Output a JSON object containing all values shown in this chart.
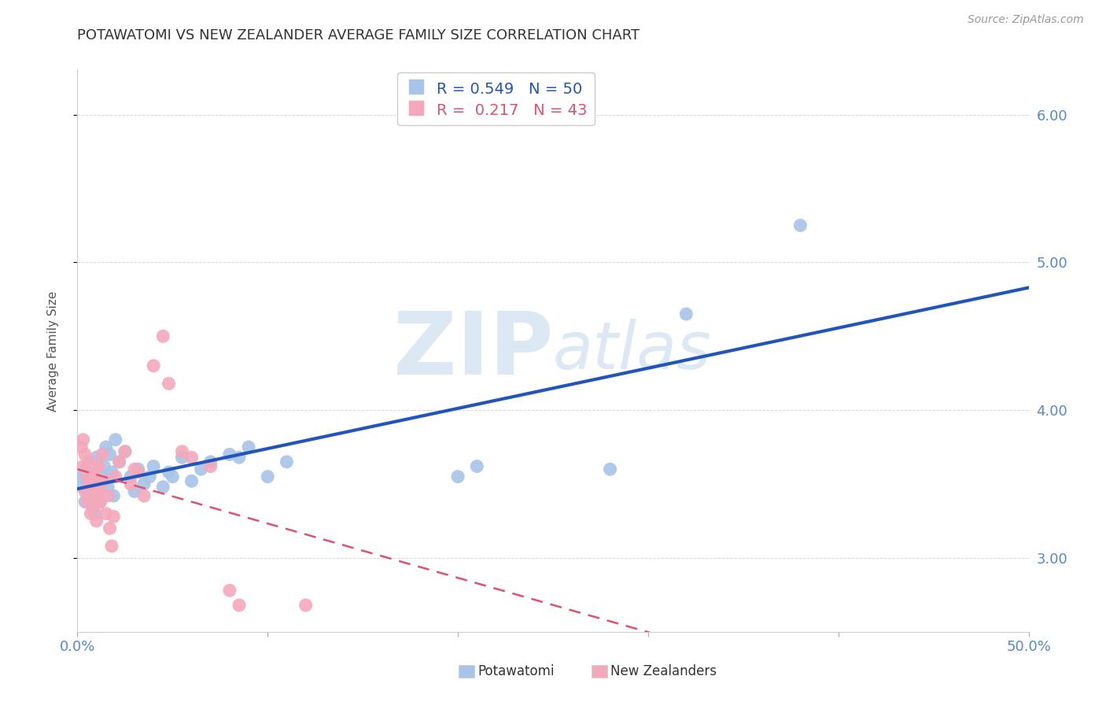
{
  "title": "POTAWATOMI VS NEW ZEALANDER AVERAGE FAMILY SIZE CORRELATION CHART",
  "source": "Source: ZipAtlas.com",
  "ylabel": "Average Family Size",
  "xlim": [
    0.0,
    0.5
  ],
  "ylim": [
    2.5,
    6.3
  ],
  "yticks": [
    3.0,
    4.0,
    5.0,
    6.0
  ],
  "xticks": [
    0.0,
    0.1,
    0.2,
    0.3,
    0.4,
    0.5
  ],
  "xticklabels": [
    "0.0%",
    "",
    "",
    "",
    "",
    "50.0%"
  ],
  "yticklabels": [
    "3.00",
    "4.00",
    "5.00",
    "6.00"
  ],
  "blue_R": 0.549,
  "blue_N": 50,
  "pink_R": 0.217,
  "pink_N": 43,
  "blue_color": "#a8c4e8",
  "pink_color": "#f4a8bc",
  "blue_line_color": "#2255bb",
  "pink_line_color": "#e05070",
  "legend_label_blue": "Potawatomi",
  "legend_label_pink": "New Zealanders",
  "blue_dots": [
    [
      0.002,
      3.55
    ],
    [
      0.003,
      3.48
    ],
    [
      0.004,
      3.38
    ],
    [
      0.005,
      3.62
    ],
    [
      0.005,
      3.45
    ],
    [
      0.006,
      3.52
    ],
    [
      0.006,
      3.58
    ],
    [
      0.007,
      3.4
    ],
    [
      0.007,
      3.65
    ],
    [
      0.008,
      3.35
    ],
    [
      0.008,
      3.55
    ],
    [
      0.009,
      3.42
    ],
    [
      0.009,
      3.3
    ],
    [
      0.01,
      3.68
    ],
    [
      0.01,
      3.5
    ],
    [
      0.011,
      3.45
    ],
    [
      0.012,
      3.38
    ],
    [
      0.013,
      3.55
    ],
    [
      0.014,
      3.62
    ],
    [
      0.015,
      3.75
    ],
    [
      0.016,
      3.48
    ],
    [
      0.017,
      3.7
    ],
    [
      0.018,
      3.58
    ],
    [
      0.019,
      3.42
    ],
    [
      0.02,
      3.8
    ],
    [
      0.022,
      3.65
    ],
    [
      0.025,
      3.72
    ],
    [
      0.028,
      3.55
    ],
    [
      0.03,
      3.45
    ],
    [
      0.032,
      3.6
    ],
    [
      0.035,
      3.5
    ],
    [
      0.038,
      3.55
    ],
    [
      0.04,
      3.62
    ],
    [
      0.045,
      3.48
    ],
    [
      0.048,
      3.58
    ],
    [
      0.05,
      3.55
    ],
    [
      0.055,
      3.68
    ],
    [
      0.06,
      3.52
    ],
    [
      0.065,
      3.6
    ],
    [
      0.07,
      3.65
    ],
    [
      0.08,
      3.7
    ],
    [
      0.085,
      3.68
    ],
    [
      0.09,
      3.75
    ],
    [
      0.1,
      3.55
    ],
    [
      0.11,
      3.65
    ],
    [
      0.2,
      3.55
    ],
    [
      0.21,
      3.62
    ],
    [
      0.28,
      3.6
    ],
    [
      0.32,
      4.65
    ],
    [
      0.38,
      5.25
    ]
  ],
  "pink_dots": [
    [
      0.002,
      3.75
    ],
    [
      0.003,
      3.8
    ],
    [
      0.003,
      3.62
    ],
    [
      0.004,
      3.45
    ],
    [
      0.004,
      3.7
    ],
    [
      0.005,
      3.55
    ],
    [
      0.005,
      3.38
    ],
    [
      0.006,
      3.65
    ],
    [
      0.006,
      3.48
    ],
    [
      0.007,
      3.52
    ],
    [
      0.007,
      3.3
    ],
    [
      0.008,
      3.42
    ],
    [
      0.008,
      3.6
    ],
    [
      0.009,
      3.35
    ],
    [
      0.009,
      3.55
    ],
    [
      0.01,
      3.48
    ],
    [
      0.01,
      3.25
    ],
    [
      0.011,
      3.62
    ],
    [
      0.012,
      3.45
    ],
    [
      0.012,
      3.38
    ],
    [
      0.013,
      3.7
    ],
    [
      0.014,
      3.52
    ],
    [
      0.015,
      3.3
    ],
    [
      0.016,
      3.42
    ],
    [
      0.017,
      3.2
    ],
    [
      0.018,
      3.08
    ],
    [
      0.019,
      3.28
    ],
    [
      0.02,
      3.55
    ],
    [
      0.022,
      3.65
    ],
    [
      0.025,
      3.72
    ],
    [
      0.028,
      3.5
    ],
    [
      0.03,
      3.6
    ],
    [
      0.032,
      3.58
    ],
    [
      0.035,
      3.42
    ],
    [
      0.04,
      4.3
    ],
    [
      0.045,
      4.5
    ],
    [
      0.048,
      4.18
    ],
    [
      0.055,
      3.72
    ],
    [
      0.06,
      3.68
    ],
    [
      0.07,
      3.62
    ],
    [
      0.08,
      2.78
    ],
    [
      0.085,
      2.68
    ],
    [
      0.12,
      2.68
    ]
  ],
  "background_color": "#ffffff",
  "grid_color": "#cccccc",
  "axis_color": "#5588cc",
  "title_color": "#333333"
}
